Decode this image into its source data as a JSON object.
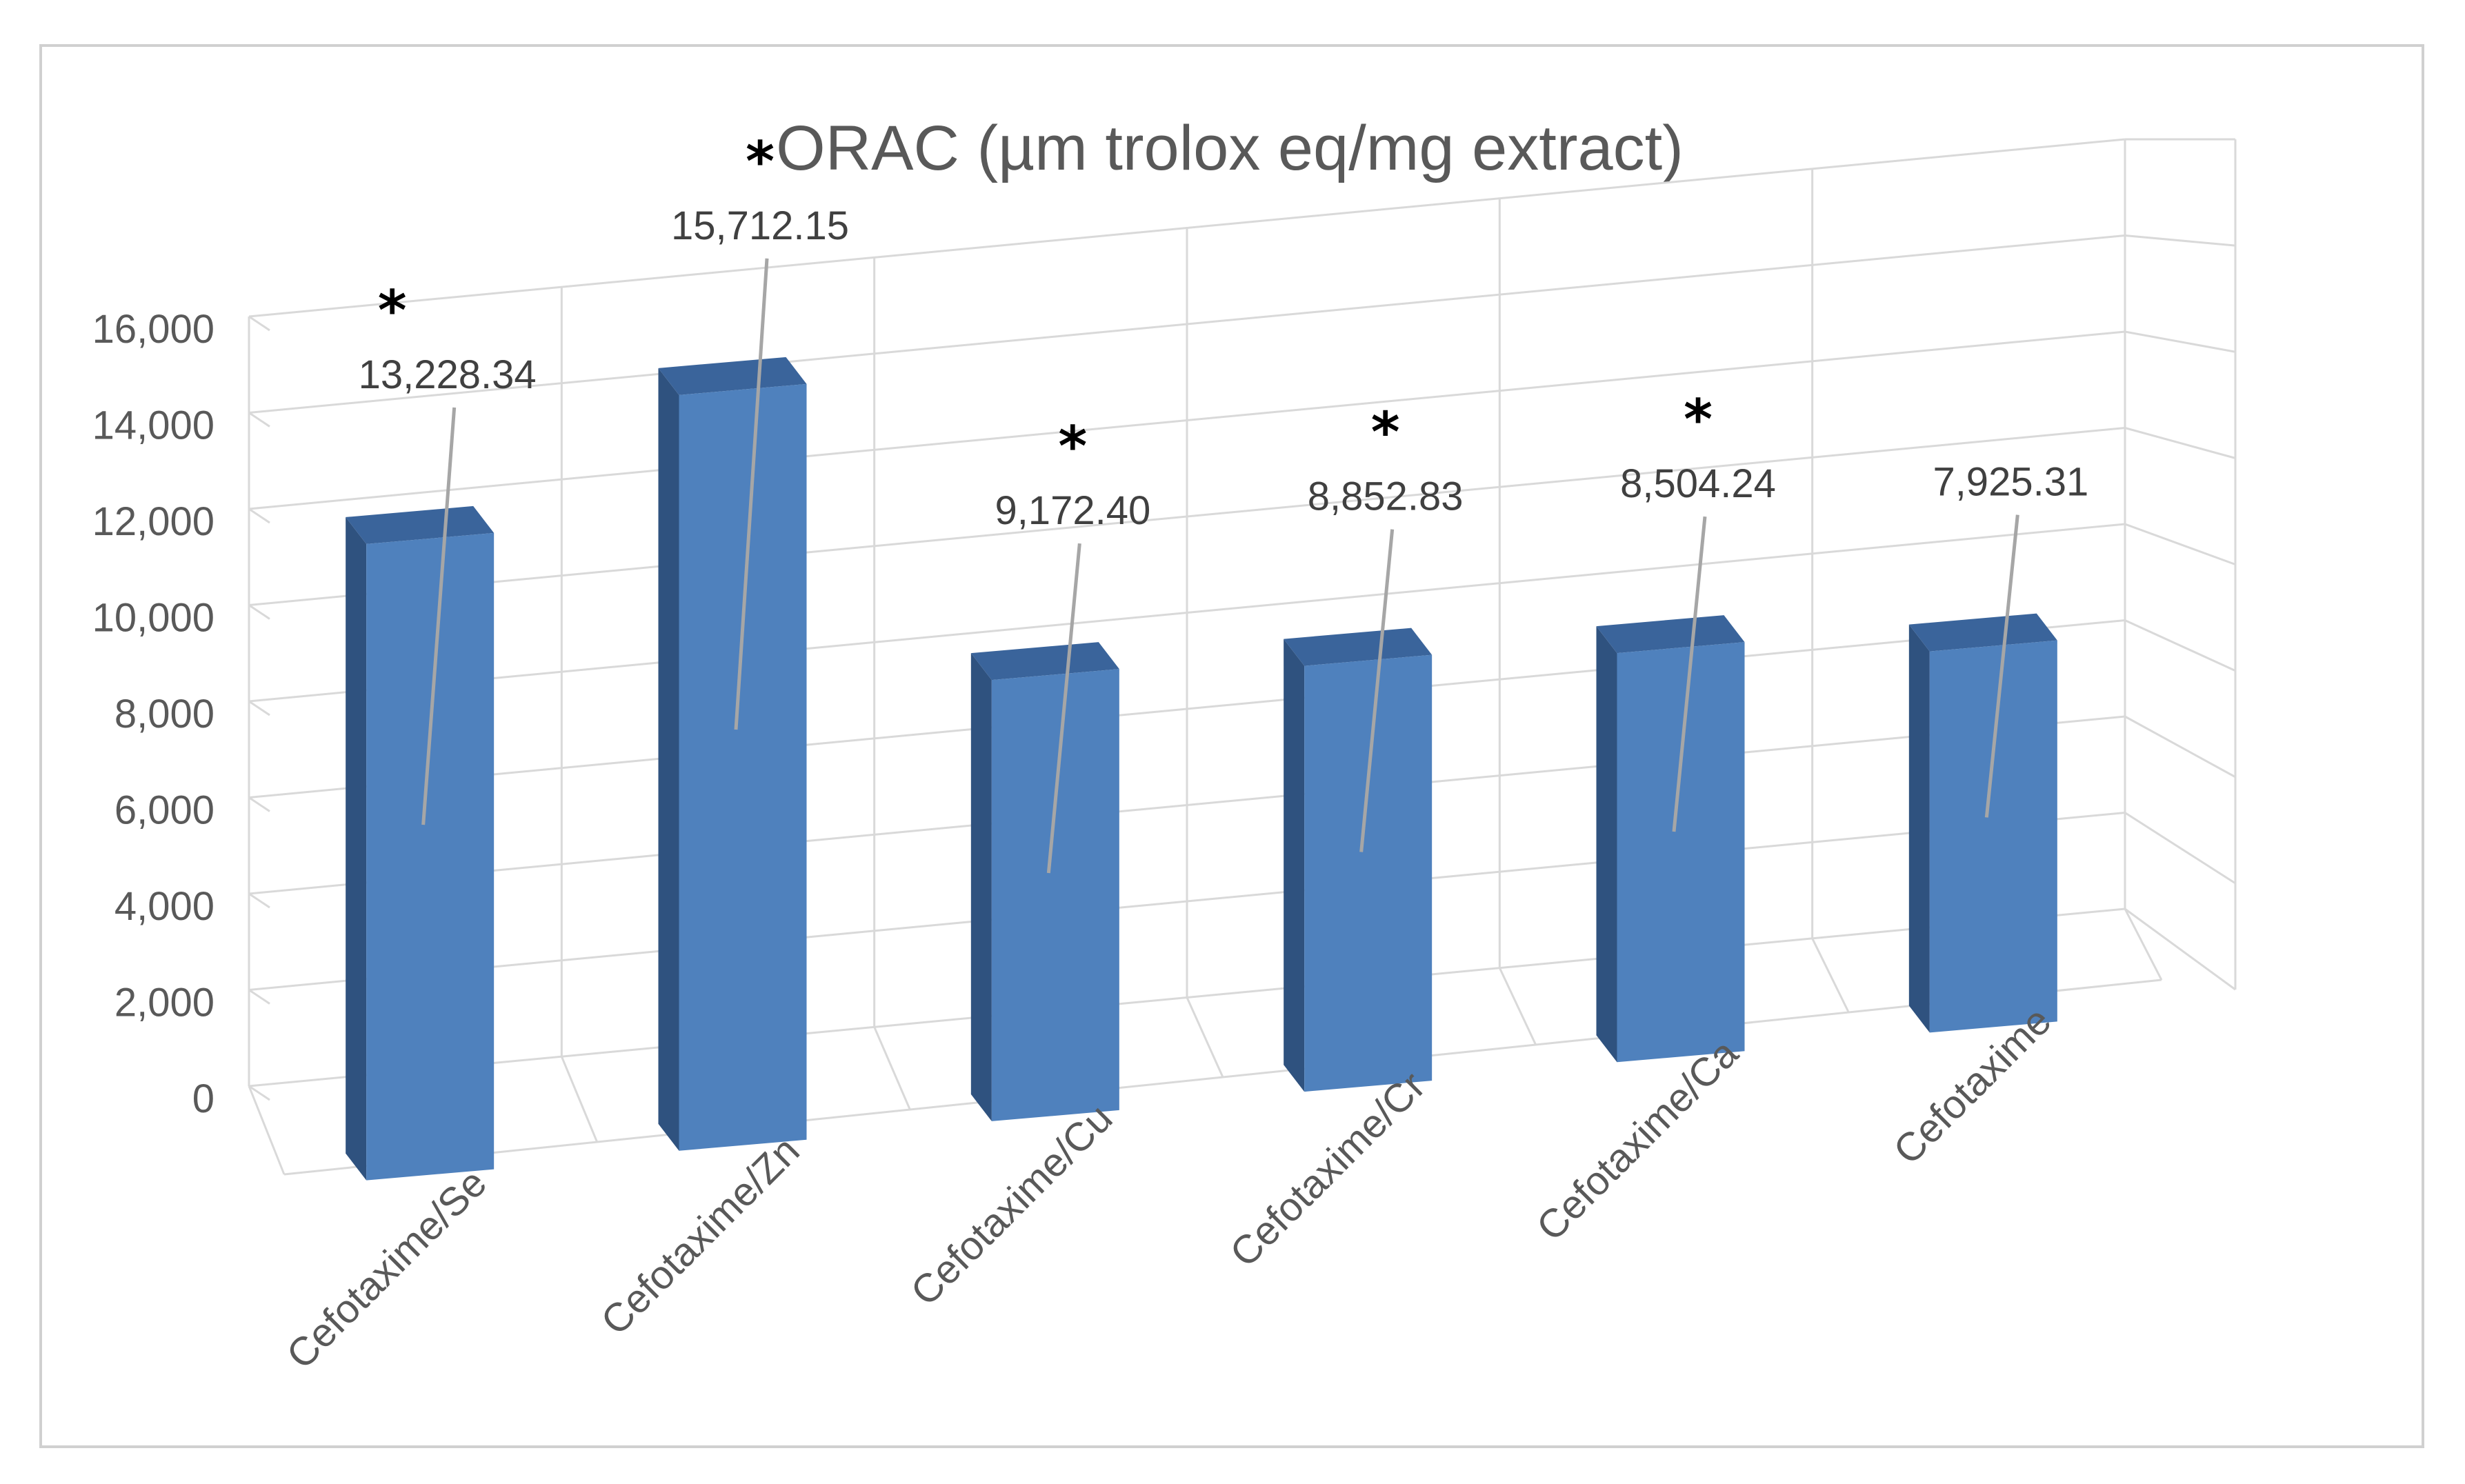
{
  "chart_data": {
    "type": "bar",
    "style": "3d-column",
    "title": "ORAC (µm trolox eq/mg extract)",
    "xlabel": "",
    "ylabel": "",
    "ylim": [
      0,
      16000
    ],
    "yticks": [
      0,
      2000,
      4000,
      6000,
      8000,
      10000,
      12000,
      14000,
      16000
    ],
    "ytick_labels": [
      "0",
      "2,000",
      "4,000",
      "6,000",
      "8,000",
      "10,000",
      "12,000",
      "14,000",
      "16,000"
    ],
    "categories": [
      "Cefotaxime/Se",
      "Cefotaxime/Zn",
      "Cefotaxime/Cu",
      "Cefotaxime/Cr",
      "Cefotaxime/Ca",
      "Cefotaxime"
    ],
    "values": [
      13228.34,
      15712.15,
      9172.4,
      8852.83,
      8504.24,
      7925.31
    ],
    "data_labels": [
      "13,228.34",
      "15,712.15",
      "9,172.40",
      "8,852.83",
      "8,504.24",
      "7,925.31"
    ],
    "significance_marks": [
      "*",
      "*",
      "*",
      "*",
      "*",
      ""
    ],
    "grid": true,
    "legend": "none",
    "colors": {
      "bar_front": "#4f81bd",
      "bar_side": "#2f527f",
      "bar_top": "#3a649b",
      "gridline": "#d9d9d9",
      "leader_line": "#a6a6a6",
      "text": "#595959"
    }
  }
}
